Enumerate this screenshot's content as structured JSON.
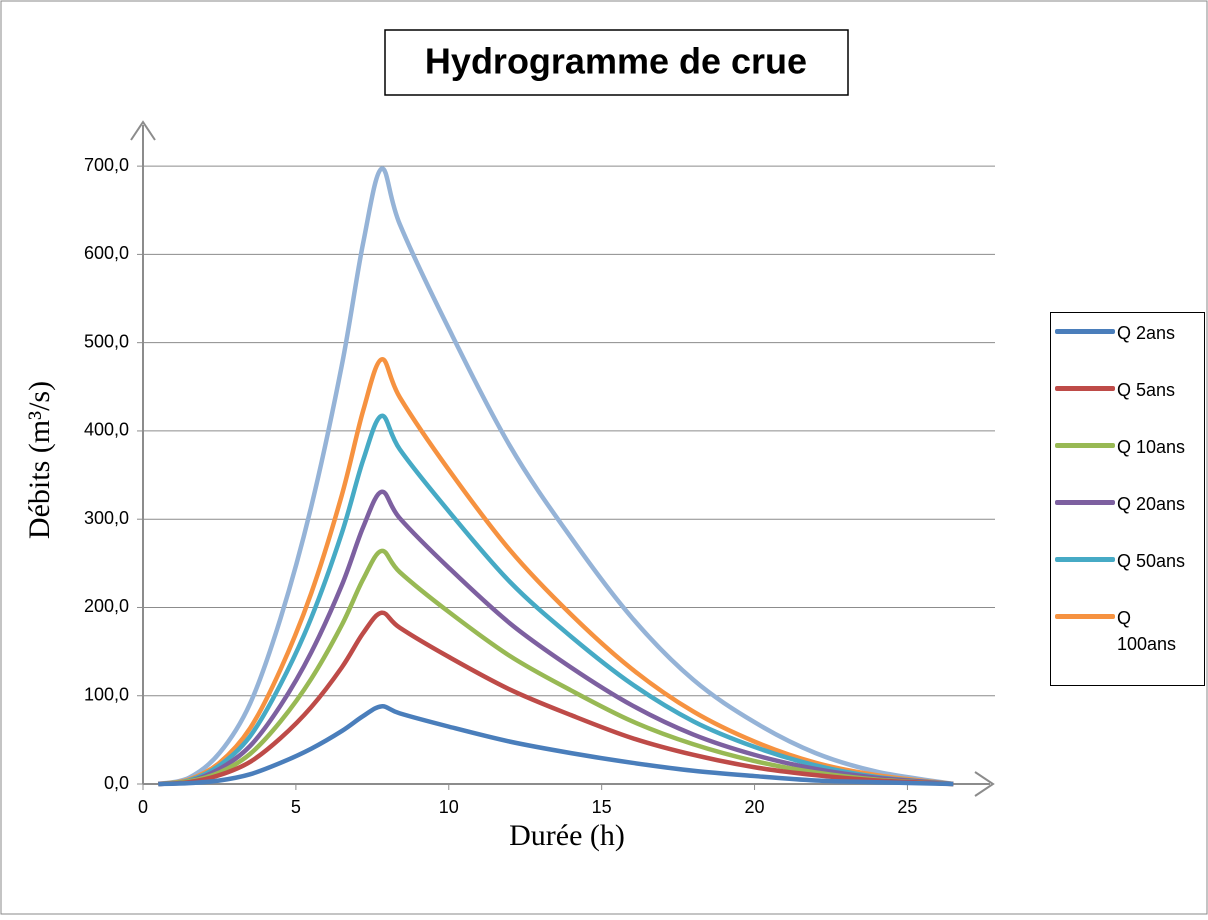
{
  "chart_data": {
    "type": "line",
    "title": "Hydrogramme de crue",
    "x_label": "Durée (h)",
    "y_label": "Débits (m³/s)",
    "x": [
      0.5,
      1.5,
      2.5,
      3.5,
      4.5,
      5.5,
      6.5,
      7.2,
      7.8,
      8.4,
      10,
      12,
      14,
      16,
      18,
      20,
      22,
      24,
      26.5
    ],
    "series": [
      {
        "name": "Q 2ans",
        "color": "#4a7ebb",
        "values": [
          0,
          1,
          4,
          11,
          24,
          40,
          60,
          77,
          88,
          80,
          65,
          48,
          35,
          24,
          15,
          9,
          4,
          2,
          0
        ]
      },
      {
        "name": "Q 5ans",
        "color": "#be4b48",
        "values": [
          0,
          2,
          10,
          25,
          52,
          87,
          132,
          171,
          194,
          177,
          144,
          107,
          78,
          52,
          33,
          19,
          10,
          4,
          0
        ]
      },
      {
        "name": "Q 10ans",
        "color": "#98b954",
        "values": [
          0,
          3,
          13,
          34,
          71,
          119,
          180,
          232,
          264,
          240,
          195,
          145,
          106,
          71,
          45,
          26,
          13,
          5,
          0
        ]
      },
      {
        "name": "Q 20ans",
        "color": "#7d60a0",
        "values": [
          0,
          3,
          17,
          43,
          89,
          149,
          225,
          291,
          331,
          301,
          245,
          182,
          132,
          89,
          56,
          33,
          17,
          7,
          0
        ]
      },
      {
        "name": "Q 50ans",
        "color": "#46aac5",
        "values": [
          0,
          4,
          21,
          54,
          113,
          188,
          284,
          367,
          417,
          379,
          309,
          229,
          167,
          113,
          71,
          42,
          21,
          8,
          0
        ]
      },
      {
        "name": "Q 100ans",
        "color": "#f69240",
        "values": [
          0,
          5,
          24,
          63,
          130,
          216,
          327,
          423,
          481,
          438,
          356,
          265,
          192,
          130,
          82,
          48,
          24,
          10,
          0
        ]
      },
      {
        "color": "#95b3d7",
        "values": [
          0,
          7,
          35,
          91,
          188,
          314,
          474,
          613,
          697,
          634,
          516,
          383,
          279,
          188,
          118,
          70,
          35,
          14,
          0
        ]
      }
    ],
    "xlim": [
      0,
      27.7
    ],
    "xticks": [
      0,
      5,
      10,
      15,
      20,
      25
    ],
    "ylim": [
      0,
      750
    ],
    "yticks": [
      {
        "value": 0,
        "label": "0,0"
      },
      {
        "value": 100,
        "label": "100,0"
      },
      {
        "value": 200,
        "label": "200,0"
      },
      {
        "value": 300,
        "label": "300,0"
      },
      {
        "value": 400,
        "label": "400,0"
      },
      {
        "value": 500,
        "label": "500,0"
      },
      {
        "value": 600,
        "label": "600,0"
      },
      {
        "value": 700,
        "label": "700,0"
      }
    ],
    "grid": true,
    "legend": "right"
  }
}
